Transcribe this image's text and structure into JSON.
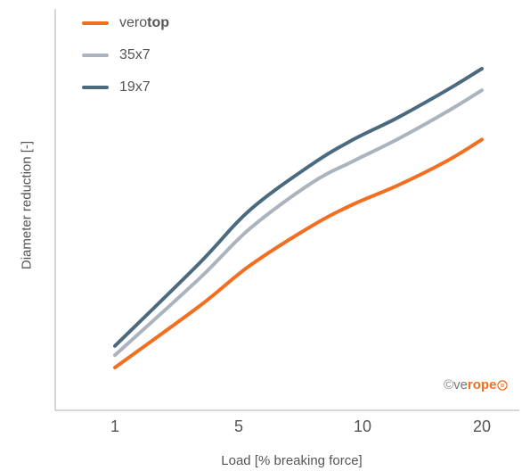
{
  "chart_data": {
    "type": "line",
    "title": "",
    "xlabel": "Load [% breaking force]",
    "ylabel": "Diameter reduction [-]",
    "x_scale": "log",
    "x_ticks": [
      "1",
      "5",
      "10",
      "20"
    ],
    "y_ticks": [],
    "grid": false,
    "legend_position": "top-left",
    "series": [
      {
        "name_prefix": "vero",
        "name_suffix": "top",
        "name": "verotop",
        "color": "#f26f21",
        "x": [
          1,
          2,
          3,
          5,
          7,
          10,
          15,
          20
        ],
        "y": [
          0.05,
          0.25,
          0.38,
          0.51,
          0.58,
          0.64,
          0.72,
          0.79
        ]
      },
      {
        "name": "35x7",
        "color": "#abb3be",
        "x": [
          1,
          2,
          3,
          5,
          7,
          10,
          15,
          20
        ],
        "y": [
          0.09,
          0.34,
          0.5,
          0.65,
          0.72,
          0.79,
          0.88,
          0.95
        ]
      },
      {
        "name": "19x7",
        "color": "#4b6a80",
        "x": [
          1,
          2,
          3,
          5,
          7,
          10,
          15,
          20
        ],
        "y": [
          0.12,
          0.39,
          0.56,
          0.71,
          0.79,
          0.86,
          0.95,
          1.02
        ]
      }
    ]
  },
  "watermark": {
    "symbol": "©",
    "plain": "ve",
    "brand": "rope",
    "icon": "rope-knot-icon"
  }
}
